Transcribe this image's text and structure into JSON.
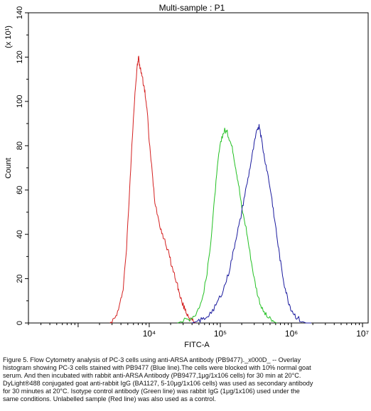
{
  "chart_data": {
    "type": "line",
    "title": "Multi-sample : P1",
    "xlabel": "FITC-A",
    "ylabel": "Count",
    "y_multiplier_label": "(x 10¹)",
    "x_scale": "log",
    "xlim": [
      200,
      12000000
    ],
    "ylim": [
      0,
      140
    ],
    "x_ticks": [
      10000,
      100000,
      1000000,
      10000000
    ],
    "x_tick_labels": [
      "10⁴",
      "10⁵",
      "10⁶",
      "10⁷"
    ],
    "y_ticks": [
      0,
      20,
      40,
      60,
      80,
      100,
      120,
      140
    ],
    "y_tick_labels": [
      "0",
      "20",
      "40",
      "60",
      "80",
      "100",
      "120",
      "140"
    ],
    "grid": false,
    "legend": "none",
    "series": [
      {
        "color": "#d42020",
        "points": [
          [
            2800,
            0
          ],
          [
            3300,
            2
          ],
          [
            3800,
            7
          ],
          [
            4300,
            16
          ],
          [
            4800,
            34
          ],
          [
            5300,
            60
          ],
          [
            5800,
            85
          ],
          [
            6300,
            104
          ],
          [
            6800,
            116
          ],
          [
            7100,
            120
          ],
          [
            7400,
            115
          ],
          [
            7800,
            113
          ],
          [
            8300,
            108
          ],
          [
            8800,
            103
          ],
          [
            9400,
            95
          ],
          [
            10000,
            82
          ],
          [
            11000,
            68
          ],
          [
            12000,
            55
          ],
          [
            13500,
            47
          ],
          [
            15000,
            41
          ],
          [
            17000,
            36
          ],
          [
            19000,
            31
          ],
          [
            21000,
            25
          ],
          [
            23000,
            21
          ],
          [
            25000,
            17
          ],
          [
            27000,
            12
          ],
          [
            30000,
            8
          ],
          [
            33000,
            5
          ],
          [
            36000,
            3
          ],
          [
            40000,
            1
          ],
          [
            45000,
            0
          ]
        ]
      },
      {
        "color": "#22c022",
        "points": [
          [
            25000,
            0
          ],
          [
            30000,
            1
          ],
          [
            37000,
            2
          ],
          [
            45000,
            4
          ],
          [
            55000,
            10
          ],
          [
            65000,
            22
          ],
          [
            75000,
            40
          ],
          [
            85000,
            60
          ],
          [
            95000,
            76
          ],
          [
            105000,
            84
          ],
          [
            115000,
            87
          ],
          [
            125000,
            86
          ],
          [
            135000,
            83
          ],
          [
            150000,
            78
          ],
          [
            165000,
            70
          ],
          [
            180000,
            63
          ],
          [
            200000,
            52
          ],
          [
            230000,
            43
          ],
          [
            260000,
            32
          ],
          [
            300000,
            20
          ],
          [
            340000,
            12
          ],
          [
            390000,
            6
          ],
          [
            450000,
            3
          ],
          [
            530000,
            1
          ],
          [
            620000,
            0
          ]
        ]
      },
      {
        "color": "#1a1a9e",
        "points": [
          [
            40000,
            0
          ],
          [
            50000,
            1
          ],
          [
            60000,
            2
          ],
          [
            75000,
            5
          ],
          [
            90000,
            9
          ],
          [
            110000,
            15
          ],
          [
            130000,
            22
          ],
          [
            150000,
            31
          ],
          [
            170000,
            40
          ],
          [
            190000,
            46
          ],
          [
            215000,
            56
          ],
          [
            245000,
            65
          ],
          [
            275000,
            74
          ],
          [
            305000,
            82
          ],
          [
            335000,
            88
          ],
          [
            355000,
            89
          ],
          [
            375000,
            84
          ],
          [
            410000,
            76
          ],
          [
            460000,
            68
          ],
          [
            520000,
            58
          ],
          [
            580000,
            47
          ],
          [
            650000,
            35
          ],
          [
            720000,
            25
          ],
          [
            800000,
            17
          ],
          [
            900000,
            10
          ],
          [
            1000000,
            6
          ],
          [
            1150000,
            3
          ],
          [
            1350000,
            1
          ],
          [
            1600000,
            0
          ],
          [
            1900000,
            0
          ]
        ]
      }
    ]
  },
  "caption": {
    "lines": [
      "Figure 5. Flow Cytometry analysis of PC-3 cells using anti-ARSA antibody (PB9477)._x000D_ -- Overlay",
      "histogram showing PC-3 cells stained with PB9477 (Blue line).The cells were blocked with 10% normal goat",
      "serum. And then incubated with rabbit anti-ARSA Antibody (PB9477,1μg/1x106 cells) for 30 min at 20°C.",
      "DyLight®488 conjugated goat anti-rabbit IgG (BA1127, 5-10μg/1x106 cells) was used as secondary antibody",
      "for 30 minutes at 20°C. Isotype control antibody (Green line) was rabbit IgG (1μg/1x106) used under the",
      "same conditions. Unlabelled sample (Red line) was also used as a control."
    ]
  }
}
